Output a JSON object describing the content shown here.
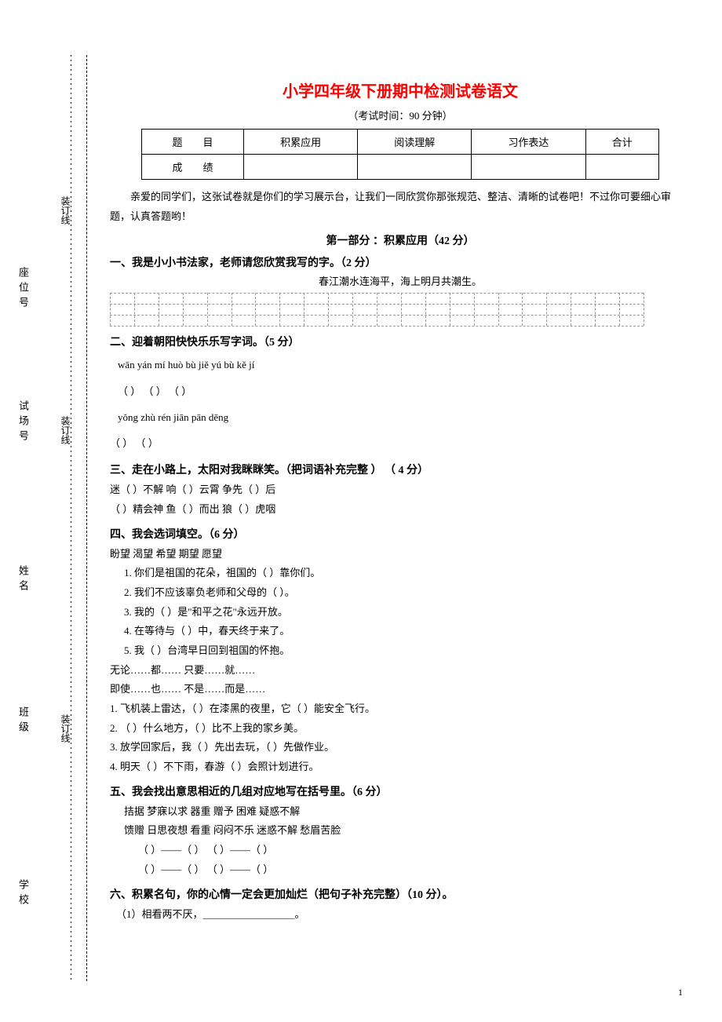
{
  "binding": {
    "labels": [
      "学校",
      "班级",
      "姓名",
      "试场号",
      "座位号"
    ],
    "line_label": "装订线"
  },
  "header": {
    "title": "小学四年级下册期中检测试卷语文",
    "title_color": "#ff0000",
    "exam_time": "（考试时间：90 分钟）"
  },
  "score_table": {
    "row1": [
      "题　　目",
      "积累应用",
      "阅读理解",
      "习作表达",
      "合计"
    ],
    "row2_label": "成　　绩"
  },
  "intro": "亲爱的同学们，这张试卷就是你们的学习展示台，让我们一同欣赏你那张规范、整洁、清晰的试卷吧！不过你可要细心审题，认真答题哟！",
  "part1_title": "第一部分 ：积累应用（42 分）",
  "q1": {
    "title": "一、我是小小书法家，老师请您欣赏我写的字。（2 分）",
    "poem": "春江潮水连海平，海上明月共潮生。"
  },
  "q2": {
    "title": "二、迎着朝阳快快乐乐写字词。（5 分）",
    "row1": "wān  yán      mí  huò  bù  jiě       yú  bù  kě   jí",
    "row1_blanks": "（          ） （                   ） （                    ）",
    "row2": " yǒng   zhù   rén   jiān          pān   dēng",
    "row2_blanks": "（                        ）     （           ）"
  },
  "q3": {
    "title": "三、走在小路上，太阳对我眯眯笑。（把词语补充完整 ） （ 4 分）",
    "line1": "迷（    ）不解      响（    ）云霄      争先（    ）后",
    "line2": " （    ）精会神      鱼（    ）而出      狼（    ）虎咽"
  },
  "q4": {
    "title": "四、我会选词填空。（6 分）",
    "words1": "盼望    渴望   希望    期望    愿望",
    "items": [
      "1. 你们是祖国的花朵，祖国的（    ）靠你们。",
      "2. 我们不应该辜负老师和父母的（     ）。",
      "3. 我的（ ）是\"和平之花\"永远开放。",
      "4. 在等待与（     ）中，春天终于来了。",
      "5. 我（    ）台湾早日回到祖国的怀抱。"
    ],
    "conj_row1": " 无论……都……               只要……就……",
    "conj_row2": " 即使……也……               不是……而是……",
    "sentences": [
      "1.  飞机装上雷达，（      ）在漆黑的夜里，它（       ）能安全飞行。",
      "2.  （       ）什么地方，（      ）比不上我的家乡美。",
      "3.  放学回家后，我（      ）先出去玩，（     ）先做作业。",
      "4.  明天（      ）不下雨，春游（       ）会照计划进行。"
    ]
  },
  "q5": {
    "title": "五、我会找出意思相近的几组对应地写在括号里。（6 分）",
    "words_row1": "拮据      梦寐以求      器重      赠予        困难          疑惑不解",
    "words_row2": "馈赠      日思夜想      看重      闷闷不乐    迷惑不解      愁眉苦脸",
    "blanks_row1": "（        ）——（        ）                    （        ）——（        ）",
    "blanks_row2": "（        ）——（        ）                    （        ）——（        ）"
  },
  "q6": {
    "title": "六、积累名句，你的心情一定会更加灿烂（把句子补充完整）（10 分）。",
    "item1": "（1）相看两不厌，＿＿＿＿＿＿＿＿＿。"
  },
  "page_number": "1"
}
